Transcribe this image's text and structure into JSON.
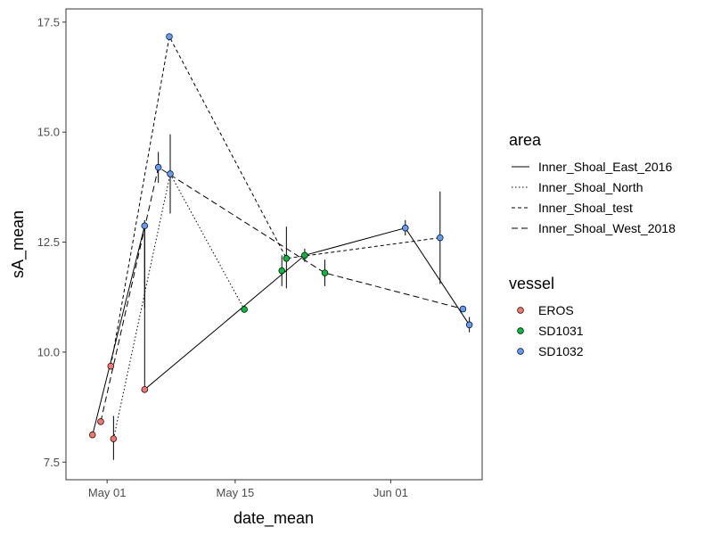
{
  "chart_data": {
    "type": "scatter",
    "xlabel": "date_mean",
    "ylabel": "sA_mean",
    "xlim": [
      -4.5,
      41
    ],
    "ylim": [
      7.1,
      17.8
    ],
    "x_origin_label": "2024-05-01 = day 0",
    "x_ticks": [
      {
        "value": 0,
        "label": "May 01"
      },
      {
        "value": 14,
        "label": "May 15"
      },
      {
        "value": 31,
        "label": "Jun 01"
      }
    ],
    "y_ticks": [
      {
        "value": 7.5,
        "label": "7.5"
      },
      {
        "value": 10.0,
        "label": "10.0"
      },
      {
        "value": 12.5,
        "label": "12.5"
      },
      {
        "value": 15.0,
        "label": "15.0"
      },
      {
        "value": 17.5,
        "label": "17.5"
      }
    ],
    "legend_area": {
      "title": "area",
      "items": [
        {
          "name": "Inner_Shoal_East_2016",
          "dash": "solid"
        },
        {
          "name": "Inner_Shoal_North",
          "dash": "dotted"
        },
        {
          "name": "Inner_Shoal_test",
          "dash": "dashed"
        },
        {
          "name": "Inner_Shoal_West_2018",
          "dash": "longdash"
        }
      ]
    },
    "legend_vessel": {
      "title": "vessel",
      "items": [
        {
          "name": "EROS",
          "color": "#F8766D"
        },
        {
          "name": "SD1031",
          "color": "#00BA38"
        },
        {
          "name": "SD1032",
          "color": "#619CFF"
        }
      ]
    },
    "points": [
      {
        "x": -1.6,
        "y": 8.12,
        "vessel": "EROS"
      },
      {
        "x": -0.7,
        "y": 8.42,
        "vessel": "EROS"
      },
      {
        "x": 0.4,
        "y": 9.68,
        "vessel": "EROS"
      },
      {
        "x": 0.7,
        "y": 8.03,
        "vessel": "EROS",
        "err": [
          7.55,
          8.55
        ]
      },
      {
        "x": 4.1,
        "y": 12.87,
        "vessel": "SD1032",
        "err": [
          11.0,
          13.0
        ]
      },
      {
        "x": 4.1,
        "y": 9.15,
        "vessel": "EROS"
      },
      {
        "x": 5.6,
        "y": 14.2,
        "vessel": "SD1032",
        "err": [
          13.85,
          14.55
        ]
      },
      {
        "x": 6.8,
        "y": 17.17,
        "vessel": "SD1032"
      },
      {
        "x": 6.9,
        "y": 14.05,
        "vessel": "SD1032",
        "err": [
          13.15,
          14.95
        ]
      },
      {
        "x": 15.0,
        "y": 10.97,
        "vessel": "SD1031"
      },
      {
        "x": 19.1,
        "y": 11.85,
        "vessel": "SD1031",
        "err": [
          11.5,
          12.2
        ]
      },
      {
        "x": 19.6,
        "y": 12.13,
        "vessel": "SD1031",
        "err": [
          11.45,
          12.85
        ]
      },
      {
        "x": 21.6,
        "y": 12.2,
        "vessel": "SD1031",
        "err": [
          12.05,
          12.35
        ]
      },
      {
        "x": 23.8,
        "y": 11.8,
        "vessel": "SD1031",
        "err": [
          11.5,
          12.1
        ]
      },
      {
        "x": 32.6,
        "y": 12.82,
        "vessel": "SD1032",
        "err": [
          12.65,
          13.0
        ]
      },
      {
        "x": 36.4,
        "y": 12.6,
        "vessel": "SD1032",
        "err": [
          11.55,
          13.65
        ]
      },
      {
        "x": 38.9,
        "y": 10.98,
        "vessel": "SD1032"
      },
      {
        "x": 39.6,
        "y": 10.62,
        "vessel": "SD1032",
        "err": [
          10.45,
          10.8
        ]
      }
    ],
    "lines": [
      {
        "area": "Inner_Shoal_East_2016",
        "dash": "solid",
        "points": [
          [
            -1.6,
            8.12
          ],
          [
            4.1,
            12.87
          ],
          [
            4.1,
            9.15
          ],
          [
            21.6,
            12.2
          ],
          [
            32.6,
            12.82
          ],
          [
            39.6,
            10.62
          ]
        ]
      },
      {
        "area": "Inner_Shoal_North",
        "dash": "dotted",
        "points": [
          [
            0.7,
            8.03
          ],
          [
            6.9,
            14.05
          ],
          [
            15.0,
            10.97
          ]
        ]
      },
      {
        "area": "Inner_Shoal_test",
        "dash": "dashed",
        "points": [
          [
            0.4,
            9.68
          ],
          [
            6.8,
            17.17
          ],
          [
            19.6,
            12.13
          ],
          [
            36.4,
            12.6
          ]
        ]
      },
      {
        "area": "Inner_Shoal_West_2018",
        "dash": "longdash",
        "points": [
          [
            -0.7,
            8.42
          ],
          [
            5.6,
            14.2
          ],
          [
            23.8,
            11.8
          ],
          [
            38.9,
            10.98
          ]
        ]
      }
    ]
  }
}
